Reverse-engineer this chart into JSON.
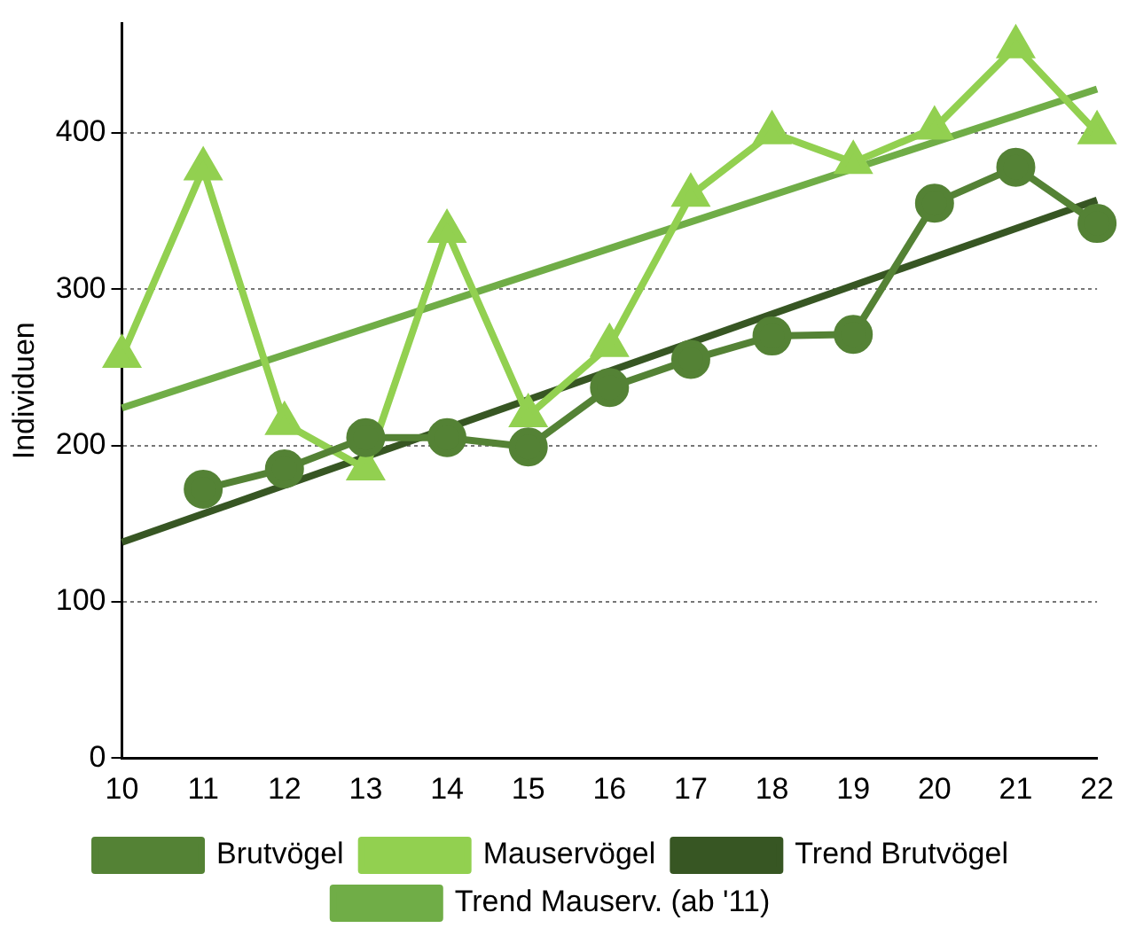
{
  "chart_data": {
    "type": "line",
    "ylabel": "Individuen",
    "categories": [
      "10",
      "11",
      "12",
      "13",
      "14",
      "15",
      "16",
      "17",
      "18",
      "19",
      "20",
      "21",
      "22"
    ],
    "ylim": [
      0,
      470
    ],
    "yticks": [
      0,
      100,
      200,
      300,
      400
    ],
    "grid": "y",
    "legend": "bottom",
    "line_style": "solid",
    "series": [
      {
        "name": "Brutvögel",
        "color": "#548235",
        "marker": "circle",
        "values": [
          null,
          172,
          185,
          205,
          205,
          199,
          237,
          255,
          270,
          271,
          355,
          378,
          342
        ]
      },
      {
        "name": "Mauservögel",
        "color": "#92d050",
        "marker": "triangle",
        "values": [
          257,
          377,
          214,
          185,
          337,
          219,
          264,
          360,
          400,
          381,
          403,
          455,
          400
        ]
      },
      {
        "name": "Trend Brutvögel",
        "color": "#375623",
        "marker": "none",
        "values": [
          138,
          null,
          null,
          null,
          null,
          null,
          null,
          null,
          null,
          null,
          null,
          null,
          357
        ]
      },
      {
        "name": "Trend Mauserv. (ab '11)",
        "color": "#70ad47",
        "marker": "none",
        "values": [
          224,
          null,
          null,
          null,
          null,
          null,
          null,
          null,
          null,
          null,
          null,
          null,
          428
        ]
      }
    ]
  }
}
